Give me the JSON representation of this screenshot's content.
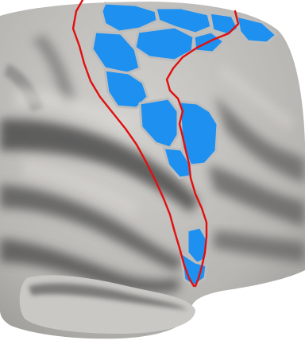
{
  "image": {
    "subject": "inflated-cortical-surface",
    "colors": {
      "background": "#ffffff",
      "cortex_gyri": "#c2c0bc",
      "cortex_sulci": "#5c5c5c",
      "region_fill": "#1e90f0",
      "region_border": "#bdbdbd",
      "boundary_line": "#e01010"
    },
    "parcel_count": 14,
    "boundary_count": 2
  }
}
